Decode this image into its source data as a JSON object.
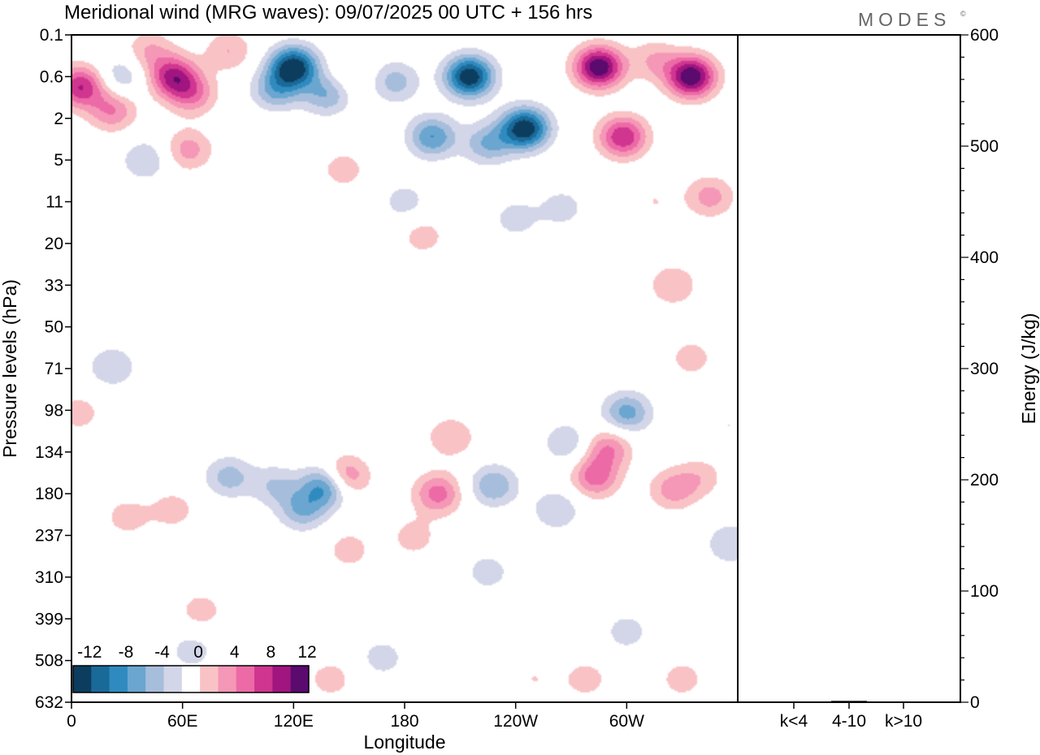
{
  "chart_data": [
    {
      "type": "heatmap",
      "title": "Meridional wind (MRG waves):  09/07/2025  00 UTC  + 156 hrs",
      "xlabel": "Longitude",
      "ylabel": "Pressure levels (hPa)",
      "x_ticks": [
        "0",
        "60E",
        "120E",
        "180",
        "120W",
        "60W"
      ],
      "y_ticks": [
        "0.1",
        "0.6",
        "2",
        "5",
        "11",
        "20",
        "33",
        "50",
        "71",
        "98",
        "134",
        "180",
        "237",
        "310",
        "399",
        "508",
        "632"
      ],
      "colorbar": {
        "levels": [
          -14,
          -12,
          -10,
          -8,
          -6,
          -4,
          -2,
          2,
          4,
          6,
          8,
          10,
          12,
          14
        ],
        "labels": [
          "-12",
          "-8",
          "-4",
          "0",
          "4",
          "8",
          "12"
        ],
        "colors": [
          "#0d3d5e",
          "#1a6a99",
          "#2f8bbf",
          "#6aa6cf",
          "#a6bedc",
          "#d3d6e8",
          "#ffffff",
          "#f9c3c6",
          "#f597b6",
          "#ec6aa6",
          "#d0358f",
          "#a0157f",
          "#5b0a6e"
        ]
      },
      "blobs": [
        {
          "lon": 5,
          "lev": 0.8,
          "v": 10
        },
        {
          "lon": 22,
          "lev": 1.6,
          "v": 6
        },
        {
          "lon": 27,
          "lev": 0.6,
          "v": -4
        },
        {
          "lon": 42,
          "lev": 0.2,
          "v": 4
        },
        {
          "lon": 55,
          "lev": 0.6,
          "v": 10
        },
        {
          "lon": 65,
          "lev": 1.0,
          "v": 6
        },
        {
          "lon": 63,
          "lev": 4.0,
          "v": 5
        },
        {
          "lon": 40,
          "lev": 5.0,
          "v": -4
        },
        {
          "lon": 85,
          "lev": 0.2,
          "v": 4
        },
        {
          "lon": 100,
          "lev": 3.0,
          "v": 2
        },
        {
          "lon": 120,
          "lev": 0.4,
          "v": -14
        },
        {
          "lon": 110,
          "lev": 0.9,
          "v": -6
        },
        {
          "lon": 138,
          "lev": 1.0,
          "v": -6
        },
        {
          "lon": 150,
          "lev": 0.6,
          "v": 2
        },
        {
          "lon": 147,
          "lev": 6.0,
          "v": 3
        },
        {
          "lon": 175,
          "lev": 0.7,
          "v": -5
        },
        {
          "lon": 195,
          "lev": 3.0,
          "v": -8
        },
        {
          "lon": 215,
          "lev": 0.6,
          "v": -14
        },
        {
          "lon": 245,
          "lev": 2.5,
          "v": -14
        },
        {
          "lon": 225,
          "lev": 3.5,
          "v": -6
        },
        {
          "lon": 180,
          "lev": 11.0,
          "v": -3
        },
        {
          "lon": 240,
          "lev": 14.0,
          "v": -3
        },
        {
          "lon": 265,
          "lev": 12.0,
          "v": -3
        },
        {
          "lon": 285,
          "lev": 0.4,
          "v": 14
        },
        {
          "lon": 298,
          "lev": 3.0,
          "v": 10
        },
        {
          "lon": 335,
          "lev": 0.6,
          "v": 14
        },
        {
          "lon": 315,
          "lev": 0.3,
          "v": 4
        },
        {
          "lon": 315,
          "lev": 11.0,
          "v": 2
        },
        {
          "lon": 345,
          "lev": 10.0,
          "v": 5
        },
        {
          "lon": 190,
          "lev": 18.0,
          "v": 3
        },
        {
          "lon": 20,
          "lev": 24.0,
          "v": -2
        },
        {
          "lon": 325,
          "lev": 33.0,
          "v": 4
        },
        {
          "lon": 335,
          "lev": 65.0,
          "v": 3
        },
        {
          "lon": 22,
          "lev": 70.0,
          "v": -4
        },
        {
          "lon": 300,
          "lev": 100.0,
          "v": -7
        },
        {
          "lon": 283,
          "lev": 160.0,
          "v": 7
        },
        {
          "lon": 290,
          "lev": 130.0,
          "v": 6
        },
        {
          "lon": 268,
          "lev": 125.0,
          "v": -4
        },
        {
          "lon": 325,
          "lev": 175.0,
          "v": 5
        },
        {
          "lon": 340,
          "lev": 160.0,
          "v": 3
        },
        {
          "lon": 356,
          "lev": 250.0,
          "v": -4
        },
        {
          "lon": 262,
          "lev": 200.0,
          "v": -4
        },
        {
          "lon": 228,
          "lev": 170.0,
          "v": -6
        },
        {
          "lon": 198,
          "lev": 180.0,
          "v": 7
        },
        {
          "lon": 205,
          "lev": 120.0,
          "v": 4
        },
        {
          "lon": 185,
          "lev": 240.0,
          "v": 3
        },
        {
          "lon": 138,
          "lev": 170.0,
          "v": -10
        },
        {
          "lon": 125,
          "lev": 200.0,
          "v": -6
        },
        {
          "lon": 110,
          "lev": 170.0,
          "v": -4
        },
        {
          "lon": 85,
          "lev": 160.0,
          "v": -5
        },
        {
          "lon": 147,
          "lev": 160.0,
          "v": 8
        },
        {
          "lon": 150,
          "lev": 260.0,
          "v": 3
        },
        {
          "lon": 55,
          "lev": 200.0,
          "v": 3
        },
        {
          "lon": 30,
          "lev": 210.0,
          "v": 3
        },
        {
          "lon": 5,
          "lev": 280.0,
          "v": -2
        },
        {
          "lon": 70,
          "lev": 380.0,
          "v": 3
        },
        {
          "lon": 140,
          "lev": 560.0,
          "v": 3
        },
        {
          "lon": 168,
          "lev": 500.0,
          "v": -3
        },
        {
          "lon": 225,
          "lev": 300.0,
          "v": -3
        },
        {
          "lon": 250,
          "lev": 560.0,
          "v": 2
        },
        {
          "lon": 278,
          "lev": 560.0,
          "v": 3
        },
        {
          "lon": 300,
          "lev": 430.0,
          "v": -3
        },
        {
          "lon": 330,
          "lev": 560.0,
          "v": 3
        },
        {
          "lon": 355,
          "lev": 110.0,
          "v": 2
        },
        {
          "lon": 65,
          "lev": 480.0,
          "v": -3
        },
        {
          "lon": 4,
          "lev": 100.0,
          "v": 3
        }
      ]
    },
    {
      "type": "bar",
      "ylabel": "Energy (J/kg)",
      "categories": [
        "k<4",
        "4-10",
        "k>10"
      ],
      "values": [
        0.4,
        1.2,
        0.2
      ],
      "ylim": [
        0,
        600
      ],
      "y_ticks": [
        "0",
        "100",
        "200",
        "300",
        "400",
        "500",
        "600"
      ]
    }
  ],
  "logo": "MODES",
  "logo_mark": "©"
}
